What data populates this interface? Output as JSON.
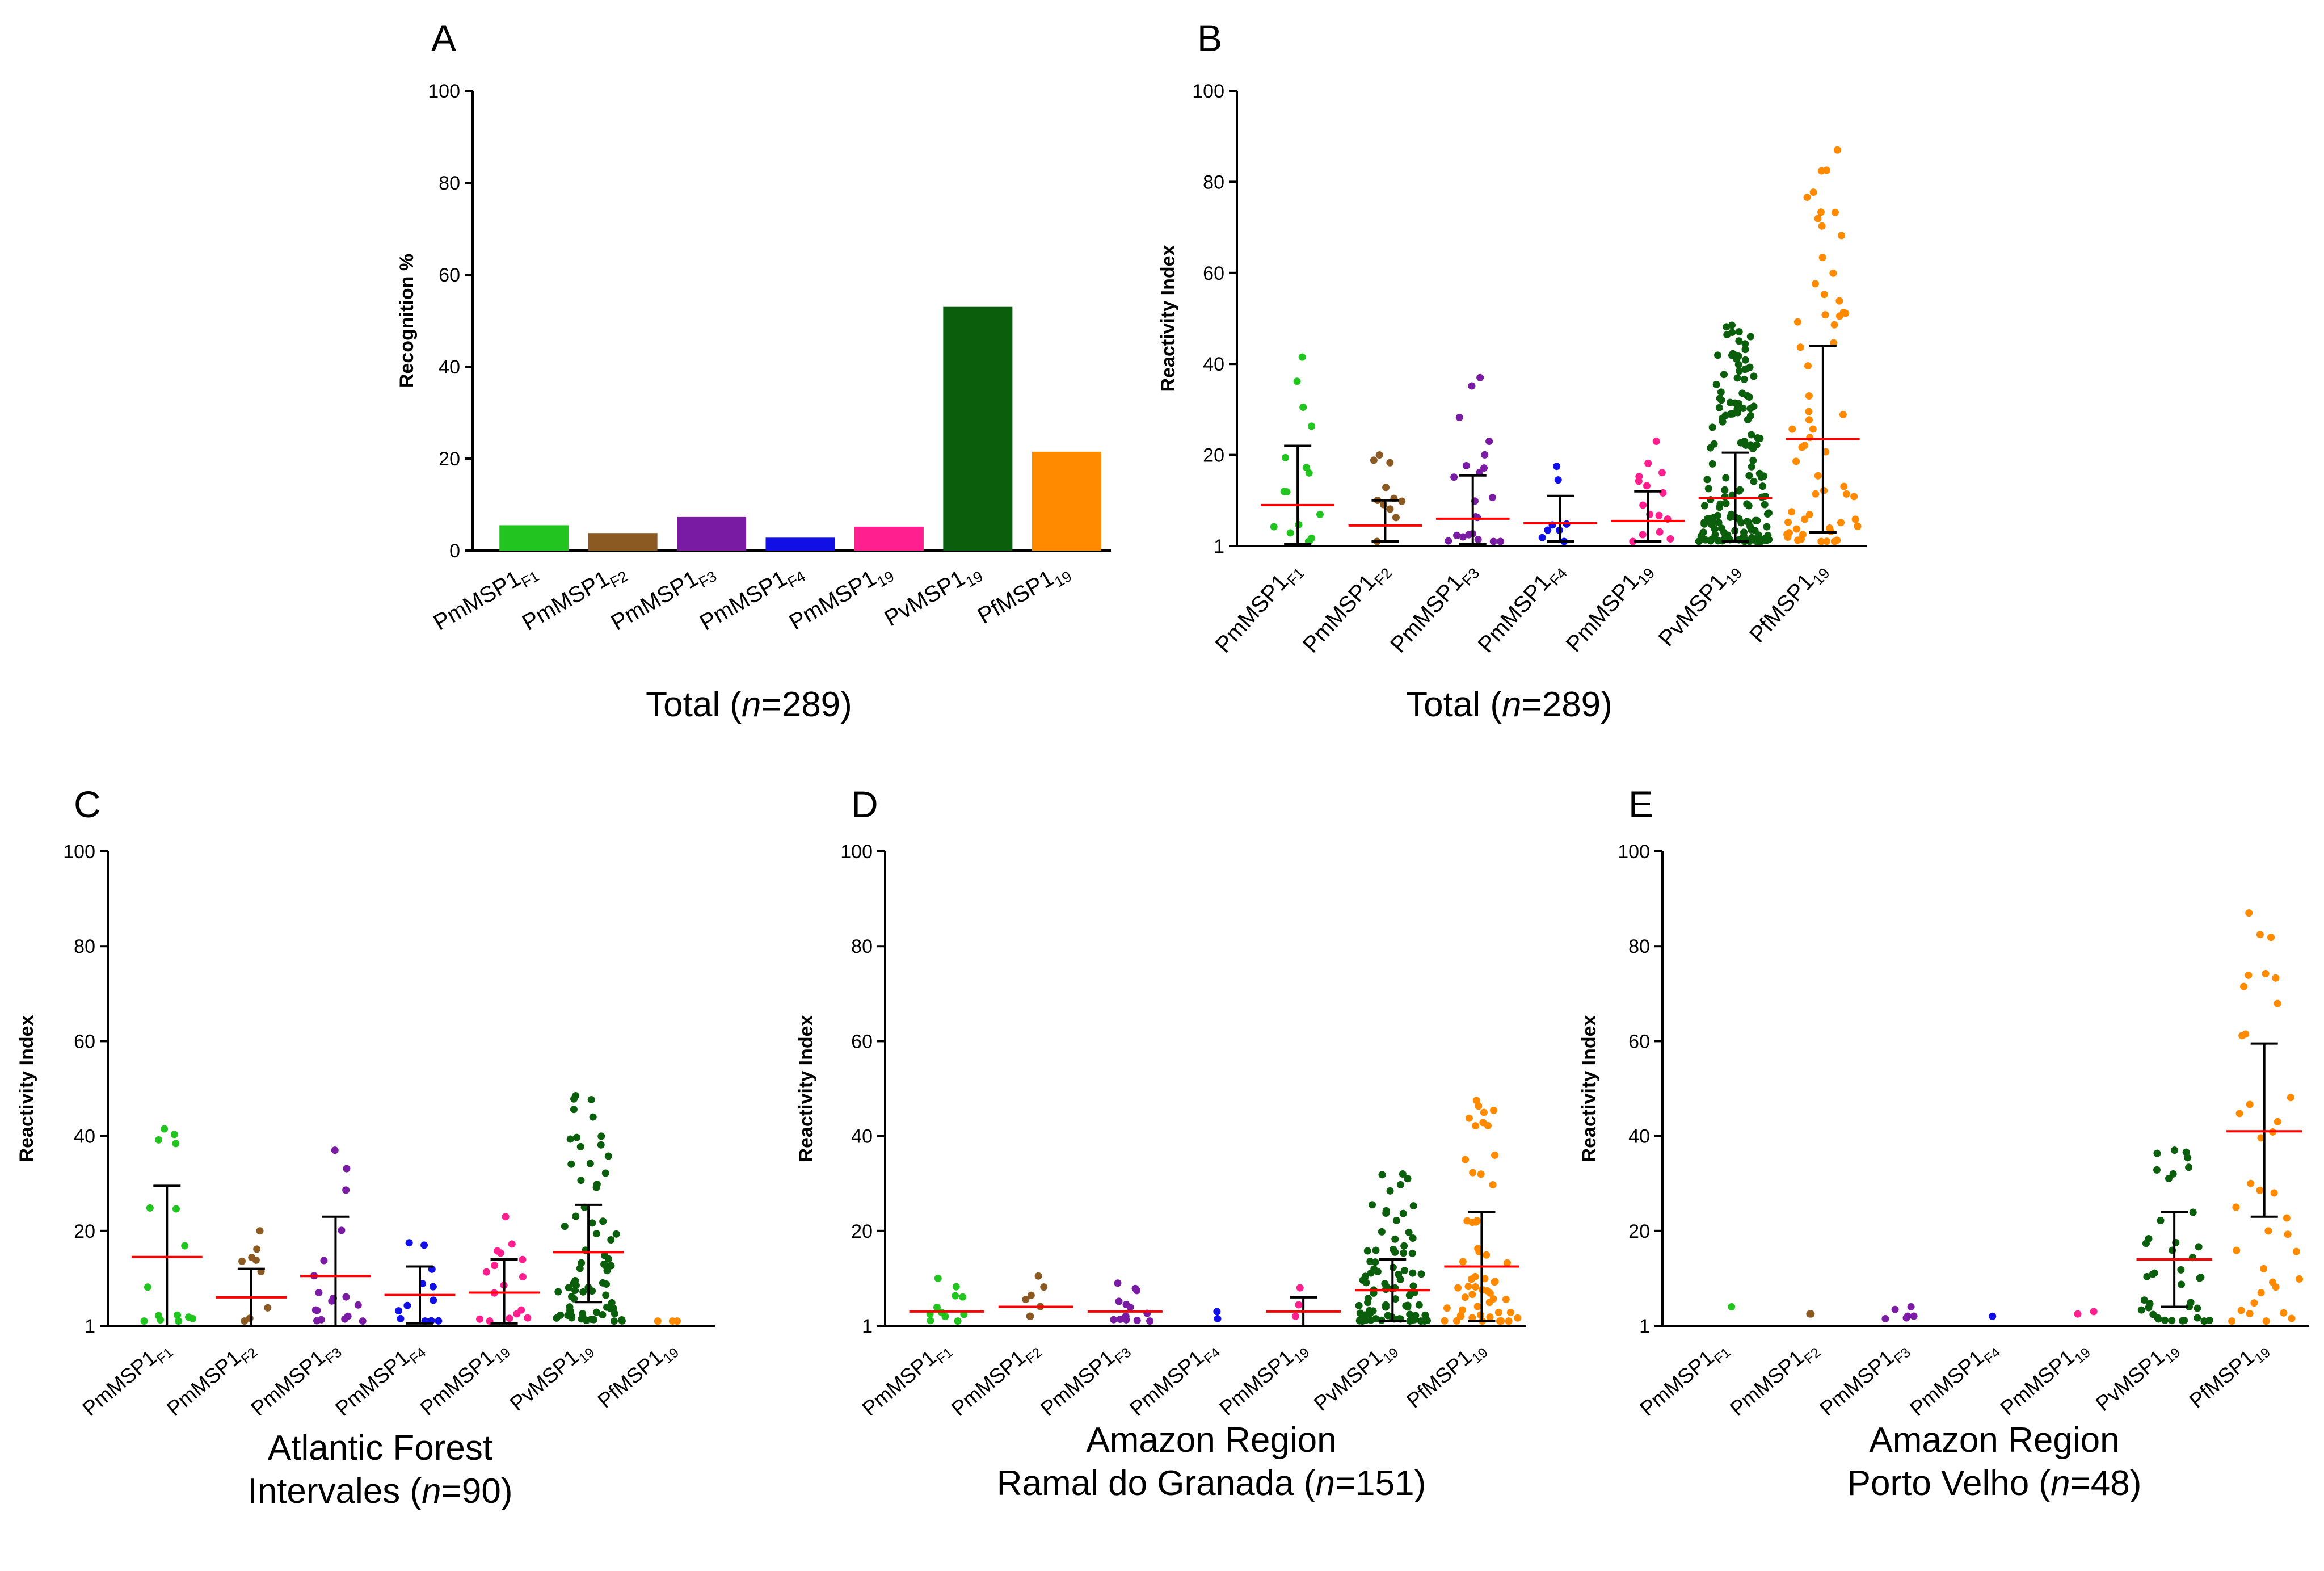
{
  "colors": {
    "PmMSP1_F1": "#22c41f",
    "PmMSP1_F2": "#8b5a23",
    "PmMSP1_F3": "#7a1ba3",
    "PmMSP1_F4": "#1010e6",
    "PmMSP1_19": "#ff1f8f",
    "PvMSP1_19": "#0b5e0b",
    "PfMSP1_19": "#ff8a00",
    "mean": "#ff0000",
    "errorbar": "#000000"
  },
  "categories": [
    {
      "base": "PmMSP1",
      "sub": "F1"
    },
    {
      "base": "PmMSP1",
      "sub": "F2"
    },
    {
      "base": "PmMSP1",
      "sub": "F3"
    },
    {
      "base": "PmMSP1",
      "sub": "F4"
    },
    {
      "base": "PmMSP1",
      "sub": "19"
    },
    {
      "base": "PvMSP1",
      "sub": "19"
    },
    {
      "base": "PfMSP1",
      "sub": "19"
    }
  ],
  "chart_data": [
    {
      "panel": "A",
      "type": "bar",
      "ylabel": "Recognition %",
      "ylim": [
        0,
        100
      ],
      "yticks": [
        "0",
        "20",
        "40",
        "60",
        "80",
        "100"
      ],
      "values": [
        5.5,
        3.8,
        7.3,
        2.8,
        5.2,
        53.0,
        21.5
      ],
      "caption": {
        "lines": [
          {
            "pre": "Total (",
            "it": "n",
            "post": "=289)"
          }
        ]
      }
    },
    {
      "panel": "B",
      "type": "scatter",
      "ylabel": "Reactivity Index",
      "ylim": [
        0,
        100
      ],
      "yticks": [
        "1",
        "20",
        "40",
        "60",
        "80",
        "100"
      ],
      "series": [
        {
          "n": 16,
          "mean": 9.0,
          "sd_low": 0.5,
          "sd_high": 22.0,
          "min": 1.0,
          "max": 41.5
        },
        {
          "n": 11,
          "mean": 4.5,
          "sd_low": 1.0,
          "sd_high": 10.0,
          "min": 1.0,
          "max": 20.0
        },
        {
          "n": 21,
          "mean": 6.0,
          "sd_low": 0.5,
          "sd_high": 15.5,
          "min": 1.0,
          "max": 37.0
        },
        {
          "n": 8,
          "mean": 5.0,
          "sd_low": 1.0,
          "sd_high": 11.0,
          "min": 1.0,
          "max": 17.5
        },
        {
          "n": 15,
          "mean": 5.5,
          "sd_low": 1.0,
          "sd_high": 12.0,
          "min": 1.0,
          "max": 23.0
        },
        {
          "n": 153,
          "mean": 10.5,
          "sd_low": 1.0,
          "sd_high": 20.5,
          "min": 1.0,
          "max": 48.5
        },
        {
          "n": 62,
          "mean": 23.5,
          "sd_low": 3.0,
          "sd_high": 44.0,
          "min": 1.0,
          "max": 87.0
        }
      ],
      "caption": {
        "lines": [
          {
            "pre": "Total (",
            "it": "n",
            "post": "=289)"
          }
        ]
      }
    },
    {
      "panel": "C",
      "type": "scatter",
      "ylabel": "Reactivity Index",
      "ylim": [
        0,
        100
      ],
      "yticks": [
        "1",
        "20",
        "40",
        "60",
        "80",
        "100"
      ],
      "series": [
        {
          "n": 15,
          "mean": 14.5,
          "sd_low": 0.0,
          "sd_high": 29.5,
          "min": 1.0,
          "max": 41.5
        },
        {
          "n": 9,
          "mean": 6.0,
          "sd_low": 0.0,
          "sd_high": 12.0,
          "min": 1.0,
          "max": 20.0
        },
        {
          "n": 18,
          "mean": 10.5,
          "sd_low": 0.0,
          "sd_high": 23.0,
          "min": 1.0,
          "max": 37.0
        },
        {
          "n": 12,
          "mean": 6.5,
          "sd_low": 0.5,
          "sd_high": 12.5,
          "min": 1.0,
          "max": 17.5
        },
        {
          "n": 16,
          "mean": 7.0,
          "sd_low": 0.5,
          "sd_high": 14.0,
          "min": 1.0,
          "max": 23.0
        },
        {
          "n": 72,
          "mean": 15.5,
          "sd_low": 5.0,
          "sd_high": 25.5,
          "min": 1.0,
          "max": 48.5
        },
        {
          "n": 3,
          "mean": null,
          "sd_low": null,
          "sd_high": null,
          "min": 1.0,
          "max": 1.0
        }
      ],
      "caption": {
        "lines": [
          {
            "pre": "Atlantic Forest",
            "it": "",
            "post": ""
          },
          {
            "pre": "Intervales (",
            "it": "n",
            "post": "=90)"
          }
        ]
      }
    },
    {
      "panel": "D",
      "type": "scatter",
      "ylabel": "Reactivity Index",
      "ylim": [
        0,
        100
      ],
      "yticks": [
        "1",
        "20",
        "40",
        "60",
        "80",
        "100"
      ],
      "series": [
        {
          "n": 11,
          "mean": 3.0,
          "sd_low": null,
          "sd_high": null,
          "min": 1.0,
          "max": 10.0
        },
        {
          "n": 7,
          "mean": 4.0,
          "sd_low": null,
          "sd_high": null,
          "min": 2.0,
          "max": 10.5
        },
        {
          "n": 13,
          "mean": 3.0,
          "sd_low": null,
          "sd_high": null,
          "min": 1.0,
          "max": 9.0
        },
        {
          "n": 2,
          "mean": null,
          "sd_low": null,
          "sd_high": null,
          "min": 1.5,
          "max": 3.0
        },
        {
          "n": 3,
          "mean": 3.0,
          "sd_low": 0.0,
          "sd_high": 6.0,
          "min": 2.0,
          "max": 8.0
        },
        {
          "n": 90,
          "mean": 7.5,
          "sd_low": 1.0,
          "sd_high": 14.0,
          "min": 1.0,
          "max": 32.0
        },
        {
          "n": 55,
          "mean": 12.5,
          "sd_low": 1.0,
          "sd_high": 24.0,
          "min": 1.0,
          "max": 47.5
        }
      ],
      "caption": {
        "lines": [
          {
            "pre": "Amazon Region",
            "it": "",
            "post": ""
          },
          {
            "pre": "Ramal do Granada (",
            "it": "n",
            "post": "=151)"
          }
        ]
      }
    },
    {
      "panel": "E",
      "type": "scatter",
      "ylabel": "Reactivity Index",
      "ylim": [
        0,
        100
      ],
      "yticks": [
        "1",
        "20",
        "40",
        "60",
        "80",
        "100"
      ],
      "series": [
        {
          "n": 1,
          "mean": null,
          "sd_low": null,
          "sd_high": null,
          "min": 4.0,
          "max": 4.0
        },
        {
          "n": 2,
          "mean": null,
          "sd_low": null,
          "sd_high": null,
          "min": 2.5,
          "max": 2.5
        },
        {
          "n": 6,
          "mean": null,
          "sd_low": null,
          "sd_high": null,
          "min": 1.5,
          "max": 4.0
        },
        {
          "n": 1,
          "mean": null,
          "sd_low": null,
          "sd_high": null,
          "min": 2.0,
          "max": 2.0
        },
        {
          "n": 2,
          "mean": null,
          "sd_low": null,
          "sd_high": null,
          "min": 2.5,
          "max": 3.0
        },
        {
          "n": 40,
          "mean": 14.0,
          "sd_low": 4.0,
          "sd_high": 24.0,
          "min": 1.0,
          "max": 37.0
        },
        {
          "n": 37,
          "mean": 41.0,
          "sd_low": 23.0,
          "sd_high": 59.5,
          "min": 1.0,
          "max": 87.0
        }
      ],
      "caption": {
        "lines": [
          {
            "pre": "Amazon Region",
            "it": "",
            "post": ""
          },
          {
            "pre": "Porto Velho (",
            "it": "n",
            "post": "=48)"
          }
        ]
      }
    }
  ]
}
